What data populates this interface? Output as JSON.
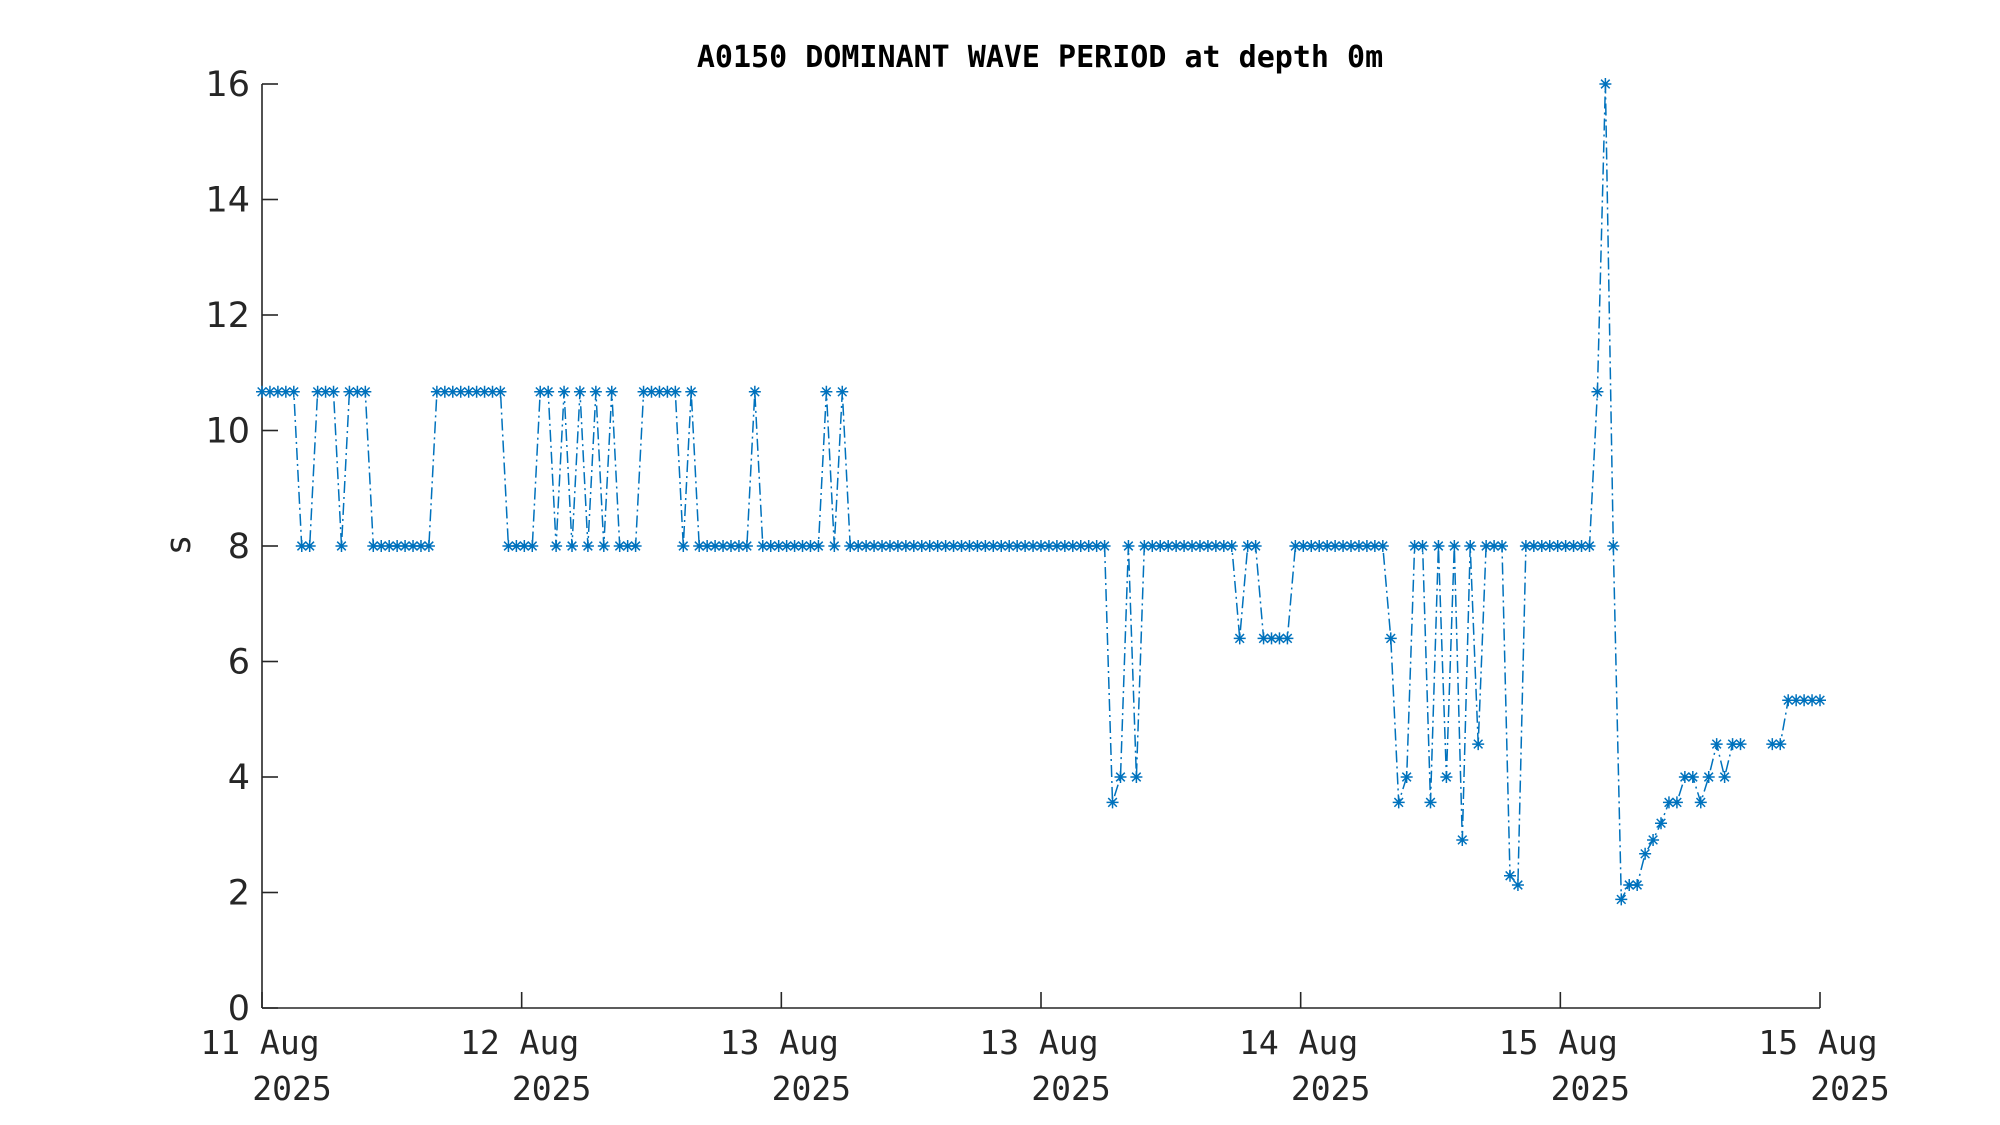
{
  "chart_data": {
    "type": "line",
    "title": "A0150 DOMINANT WAVE PERIOD at depth 0m",
    "xlabel": "",
    "ylabel": "s",
    "ylim": [
      0,
      16
    ],
    "yticks": [
      0,
      2,
      4,
      6,
      8,
      10,
      12,
      14,
      16
    ],
    "xlim_days": [
      0,
      6
    ],
    "xticks": [
      {
        "line1": "11 Aug",
        "line2": "2025"
      },
      {
        "line1": "12 Aug",
        "line2": "2025"
      },
      {
        "line1": "13 Aug",
        "line2": "2025"
      },
      {
        "line1": "13 Aug",
        "line2": "2025"
      },
      {
        "line1": "14 Aug",
        "line2": "2025"
      },
      {
        "line1": "15 Aug",
        "line2": "2025"
      },
      {
        "line1": "15 Aug",
        "line2": "2025"
      }
    ],
    "grid": false,
    "legend": "none",
    "marker": "*",
    "line_style": "dash-dot",
    "color": "#0072BD",
    "series": [
      {
        "values": [
          10.67,
          10.67,
          10.67,
          10.67,
          10.67,
          8,
          8,
          10.67,
          10.67,
          10.67,
          8,
          10.67,
          10.67,
          10.67,
          8,
          8,
          8,
          8,
          8,
          8,
          8,
          8,
          10.67,
          10.67,
          10.67,
          10.67,
          10.67,
          10.67,
          10.67,
          10.67,
          10.67,
          8,
          8,
          8,
          8,
          10.67,
          10.67,
          8,
          10.67,
          8,
          10.67,
          8,
          10.67,
          8,
          10.67,
          8,
          8,
          8,
          10.67,
          10.67,
          10.67,
          10.67,
          10.67,
          8,
          10.67,
          8,
          8,
          8,
          8,
          8,
          8,
          8,
          10.67,
          8,
          8,
          8,
          8,
          8,
          8,
          8,
          8,
          10.67,
          8,
          10.67,
          8,
          8,
          8,
          8,
          8,
          8,
          8,
          8,
          8,
          8,
          8,
          8,
          8,
          8,
          8,
          8,
          8,
          8,
          8,
          8,
          8,
          8,
          8,
          8,
          8,
          8,
          8,
          8,
          8,
          8,
          8,
          8,
          8,
          3.56,
          4,
          8,
          4,
          8,
          8,
          8,
          8,
          8,
          8,
          8,
          8,
          8,
          8,
          8,
          8,
          6.4,
          8,
          8,
          6.4,
          6.4,
          6.4,
          6.4,
          8,
          8,
          8,
          8,
          8,
          8,
          8,
          8,
          8,
          8,
          8,
          8,
          6.4,
          3.56,
          4,
          8,
          8,
          3.56,
          8,
          4,
          8,
          2.91,
          8,
          4.57,
          8,
          8,
          8,
          2.29,
          2.13,
          8,
          8,
          8,
          8,
          8,
          8,
          8,
          8,
          8,
          10.67,
          16,
          8,
          1.88,
          2.13,
          2.13,
          2.67,
          2.91,
          3.2,
          3.56,
          3.56,
          4,
          4,
          3.56,
          4,
          4.57,
          4,
          4.57,
          4.57,
          4.57,
          4.57,
          5.33,
          5.33,
          5.33,
          5.33,
          5.33
        ],
        "gap_after_index": [
          186
        ]
      }
    ]
  }
}
